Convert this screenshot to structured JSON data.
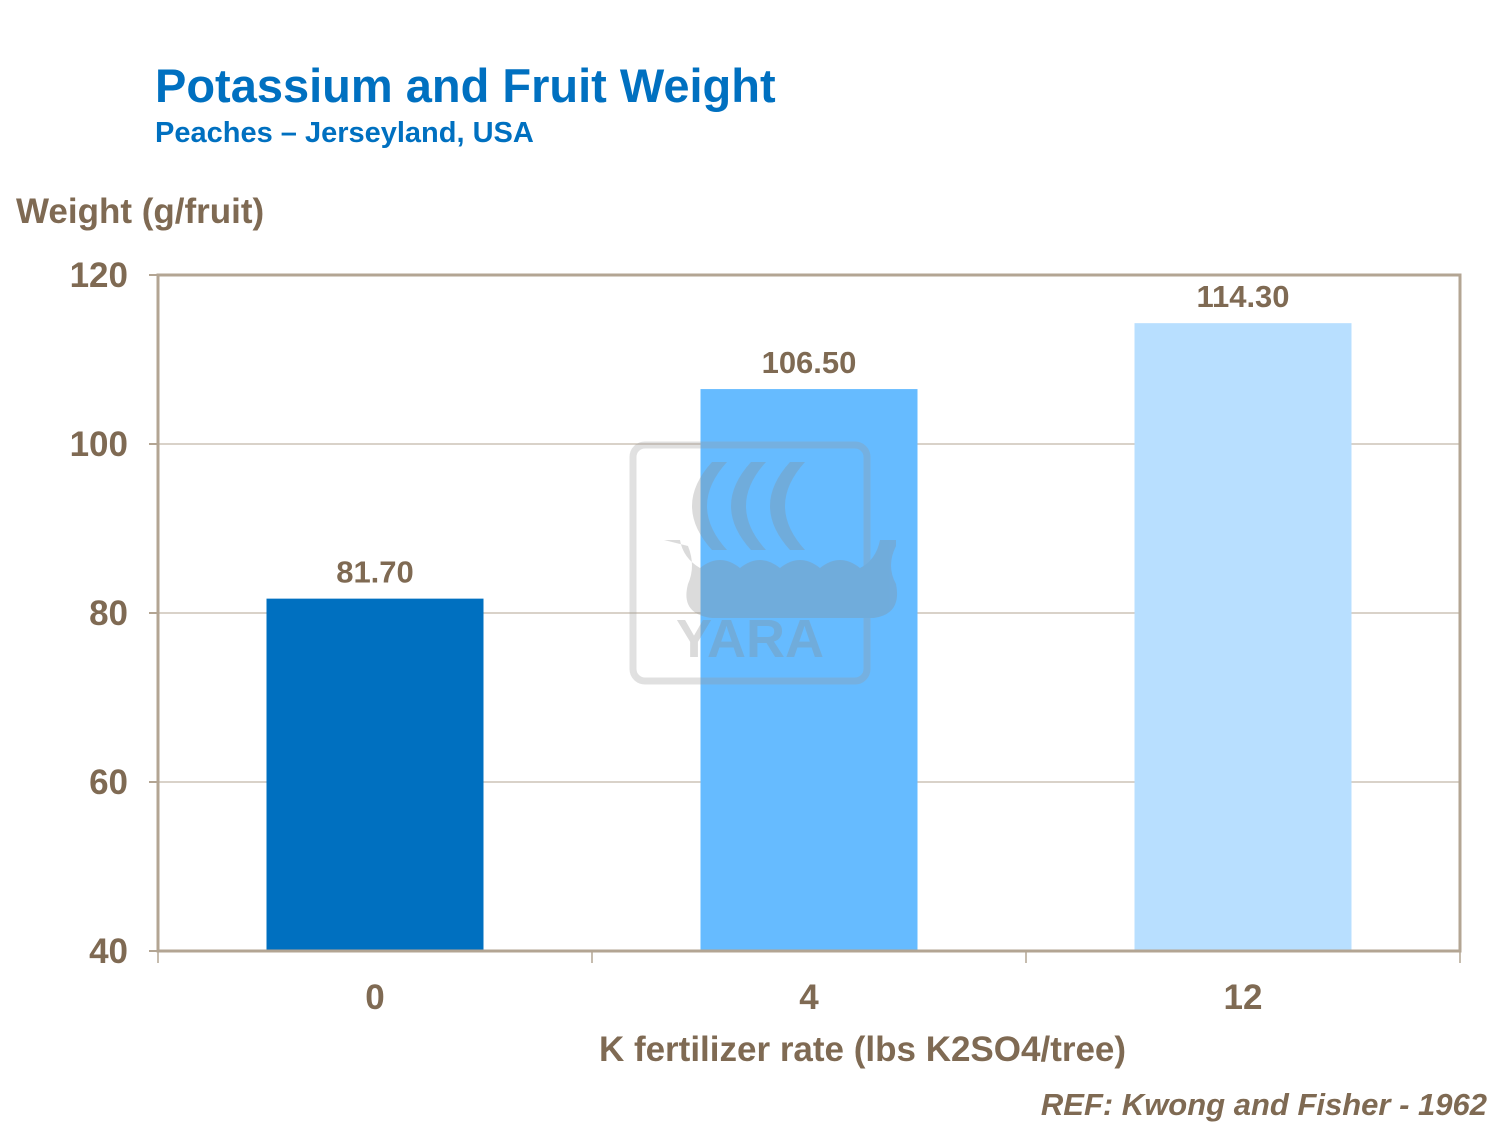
{
  "chart_data": {
    "type": "bar",
    "title": "Potassium and Fruit Weight",
    "subtitle": "Peaches – Jerseyland, USA",
    "xlabel": "K fertilizer rate (lbs K2SO4/tree)",
    "ylabel": "Weight (g/fruit)",
    "categories": [
      "0",
      "4",
      "12"
    ],
    "values": [
      81.7,
      106.5,
      114.3
    ],
    "data_labels": [
      "81.70",
      "106.50",
      "114.30"
    ],
    "bar_colors": [
      "#0070C0",
      "#66BBFF",
      "#B8DFFF"
    ],
    "ylim": [
      40,
      120
    ],
    "yticks": [
      40,
      60,
      80,
      100,
      120
    ],
    "grid": true,
    "legend": "none",
    "reference": "REF: Kwong and Fisher - 1962",
    "watermark": "YARA"
  }
}
